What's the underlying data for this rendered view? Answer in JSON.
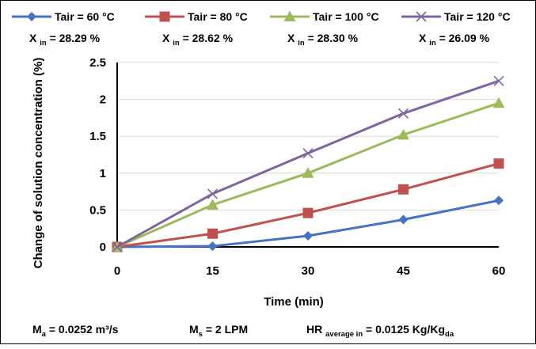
{
  "chart_data": {
    "type": "line",
    "title": "",
    "xlabel": "Time (min)",
    "ylabel": "Change of solution concentration (%)",
    "x": [
      0,
      15,
      30,
      45,
      60
    ],
    "xlim": [
      0,
      60
    ],
    "ylim": [
      0,
      2.5
    ],
    "xticks": [
      "0",
      "15",
      "30",
      "45",
      "60"
    ],
    "yticks": [
      "0",
      "0.5",
      "1",
      "1.5",
      "2",
      "2.5"
    ],
    "grid": "horizontal",
    "legend": "top",
    "series": [
      {
        "name": "Tair = 60 °C",
        "values": [
          0,
          0.01,
          0.15,
          0.37,
          0.63
        ],
        "color": "#4472C4",
        "marker": "diamond",
        "xin": {
          "main": "X ",
          "sub": "in",
          "rest": " = 28.29 %"
        }
      },
      {
        "name": "Tair = 80 °C",
        "values": [
          0,
          0.18,
          0.46,
          0.78,
          1.13
        ],
        "color": "#C0504D",
        "marker": "square",
        "xin": {
          "main": "X ",
          "sub": "in",
          "rest": " = 28.62 %"
        }
      },
      {
        "name": "Tair = 100 °C",
        "values": [
          0,
          0.57,
          1.0,
          1.52,
          1.95
        ],
        "color": "#9BBB59",
        "marker": "triangle",
        "xin": {
          "main": "X ",
          "sub": "in",
          "rest": " = 28.30 %"
        }
      },
      {
        "name": "Tair = 120 °C",
        "values": [
          0,
          0.72,
          1.27,
          1.81,
          2.25
        ],
        "color": "#8064A2",
        "marker": "x",
        "xin": {
          "main": "X ",
          "sub": "in",
          "rest": " = 26.09 %"
        }
      }
    ],
    "footer": {
      "ma": {
        "main": "M",
        "sub": "a",
        "rest": " = 0.0252 m³/s"
      },
      "ms": {
        "main": "M",
        "sub": "s",
        "rest": " = 2 LPM"
      },
      "hr": {
        "main": "HR ",
        "sub": "average in",
        "rest": " = 0.0125 Kg/Kg",
        "sub2": "da"
      }
    }
  }
}
